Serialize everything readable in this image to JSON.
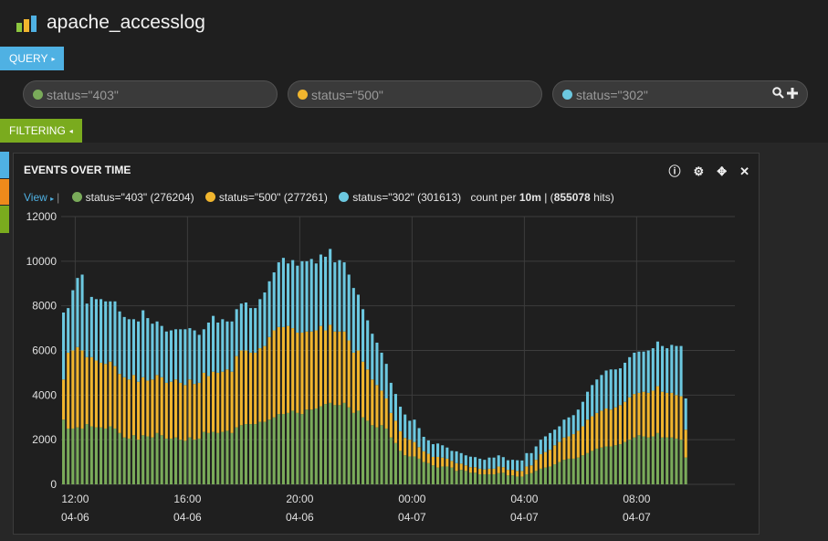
{
  "app": {
    "title": "apache_accesslog"
  },
  "query_tab": {
    "label": "QUERY",
    "caret": "▸"
  },
  "filter_tab": {
    "label": "FILTERING",
    "caret": "◂"
  },
  "queries": [
    {
      "text": "status=\"403\"",
      "color": "#7aab5a"
    },
    {
      "text": "status=\"500\"",
      "color": "#f0b52e"
    },
    {
      "text": "status=\"302\"",
      "color": "#6cc8e0"
    }
  ],
  "query_actions": {
    "search_icon": "search-icon",
    "add_icon": "plus-icon"
  },
  "side_strip_colors": [
    "#4fb1e3",
    "#ef8a1b",
    "#7aab1e"
  ],
  "panel": {
    "title": "EVENTS OVER TIME",
    "icons": [
      "info-icon",
      "gear-icon",
      "move-icon",
      "close-icon"
    ]
  },
  "legend": {
    "view_label": "View",
    "items": [
      {
        "label": "status=\"403\" (276204)",
        "color": "#7aab5a"
      },
      {
        "label": "status=\"500\" (277261)",
        "color": "#f0b52e"
      },
      {
        "label": "status=\"302\" (301613)",
        "color": "#6cc8e0"
      }
    ],
    "count_prefix": "count per",
    "interval": "10m",
    "hits_prefix": "| (",
    "hits": "855078",
    "hits_suffix": "hits)"
  },
  "chart_data": {
    "type": "bar",
    "stacked": true,
    "grid": true,
    "ylim": [
      0,
      12000
    ],
    "yticks": [
      0,
      2000,
      4000,
      6000,
      8000,
      10000,
      12000
    ],
    "xticks": [
      {
        "time": "12:00",
        "date": "04-06",
        "offset_h": 0.5
      },
      {
        "time": "16:00",
        "date": "04-06",
        "offset_h": 4.5
      },
      {
        "time": "20:00",
        "date": "04-06",
        "offset_h": 8.5
      },
      {
        "time": "00:00",
        "date": "04-07",
        "offset_h": 12.5
      },
      {
        "time": "04:00",
        "date": "04-07",
        "offset_h": 16.5
      },
      {
        "time": "08:00",
        "date": "04-07",
        "offset_h": 20.5
      }
    ],
    "x_range_h": [
      0,
      24
    ],
    "interval_min": 10,
    "series": [
      {
        "name": "status=\"403\"",
        "color": "#7aab5a",
        "values": [
          2900,
          2500,
          2500,
          2550,
          2500,
          2700,
          2600,
          2550,
          2550,
          2500,
          2600,
          2500,
          2300,
          2100,
          2050,
          2200,
          2000,
          2200,
          2150,
          2100,
          2300,
          2200,
          2050,
          2050,
          2100,
          2000,
          1950,
          2100,
          2000,
          2050,
          2350,
          2300,
          2350,
          2300,
          2350,
          2400,
          2300,
          2550,
          2650,
          2700,
          2700,
          2700,
          2800,
          2800,
          2900,
          3000,
          3150,
          3150,
          3200,
          3300,
          3200,
          3150,
          3350,
          3350,
          3400,
          3500,
          3600,
          3650,
          3550,
          3550,
          3650,
          3450,
          3200,
          3300,
          3000,
          2850,
          2650,
          2550,
          2650,
          2500,
          2100,
          1850,
          1500,
          1300,
          1250,
          1250,
          1150,
          1000,
          950,
          850,
          750,
          800,
          800,
          750,
          600,
          650,
          600,
          520,
          520,
          450,
          450,
          450,
          450,
          500,
          520,
          400,
          400,
          350,
          350,
          450,
          500,
          600,
          700,
          750,
          800,
          900,
          1000,
          1100,
          1150,
          1150,
          1200,
          1300,
          1400,
          1500,
          1600,
          1650,
          1700,
          1700,
          1750,
          1800,
          1900,
          2000,
          2100,
          2200,
          2150,
          2100,
          2150,
          2300,
          2100,
          2100,
          2100,
          2050,
          2000,
          1200
        ]
      },
      {
        "name": "status=\"500\"",
        "color": "#f0b52e",
        "values": [
          1800,
          3400,
          3500,
          3600,
          3500,
          3000,
          3100,
          3000,
          2900,
          2900,
          2900,
          2800,
          2650,
          2700,
          2650,
          2700,
          2600,
          2600,
          2500,
          2600,
          2600,
          2600,
          2500,
          2550,
          2600,
          2550,
          2500,
          2600,
          2500,
          2500,
          2650,
          2550,
          2700,
          2700,
          2700,
          2750,
          2750,
          3200,
          3350,
          3300,
          3200,
          3200,
          3300,
          3400,
          3700,
          3900,
          3900,
          3900,
          3900,
          3700,
          3600,
          3650,
          3500,
          3500,
          3500,
          3600,
          3300,
          3500,
          3300,
          3300,
          3200,
          3000,
          2700,
          2700,
          2500,
          2300,
          2050,
          1900,
          1550,
          1350,
          1100,
          1000,
          880,
          780,
          750,
          650,
          520,
          480,
          420,
          380,
          480,
          400,
          350,
          300,
          350,
          280,
          250,
          250,
          250,
          250,
          220,
          250,
          250,
          300,
          250,
          250,
          250,
          250,
          250,
          350,
          350,
          500,
          650,
          700,
          750,
          850,
          900,
          1000,
          1000,
          1100,
          1200,
          1300,
          1500,
          1550,
          1600,
          1650,
          1700,
          1650,
          1700,
          1750,
          1800,
          1900,
          1950,
          1900,
          2000,
          2000,
          2050,
          2100,
          2050,
          2000,
          2000,
          1950,
          1950,
          1250
        ]
      },
      {
        "name": "status=\"302\"",
        "color": "#6cc8e0",
        "values": [
          3000,
          2000,
          2700,
          3100,
          3400,
          2400,
          2700,
          2750,
          2850,
          2800,
          2700,
          2900,
          2800,
          2700,
          2700,
          2500,
          2700,
          3000,
          2800,
          2500,
          2400,
          2300,
          2300,
          2300,
          2250,
          2400,
          2500,
          2300,
          2400,
          2150,
          1950,
          2400,
          2500,
          2250,
          2350,
          2150,
          2250,
          2100,
          2100,
          2150,
          2000,
          2000,
          2200,
          2400,
          2500,
          2600,
          2900,
          3100,
          2800,
          3050,
          3000,
          3200,
          3150,
          3250,
          3000,
          3200,
          3300,
          3400,
          3100,
          3200,
          3100,
          2950,
          2900,
          2500,
          2350,
          2200,
          2050,
          1900,
          1700,
          1550,
          1350,
          1200,
          1100,
          1050,
          850,
          1000,
          850,
          650,
          600,
          570,
          600,
          550,
          500,
          450,
          530,
          470,
          450,
          470,
          450,
          450,
          430,
          500,
          500,
          500,
          450,
          430,
          450,
          480,
          470,
          600,
          550,
          600,
          650,
          700,
          750,
          700,
          700,
          800,
          850,
          850,
          950,
          1100,
          1250,
          1400,
          1500,
          1600,
          1700,
          1800,
          1700,
          1650,
          1750,
          1800,
          1850,
          1850,
          1800,
          1900,
          1900,
          2000,
          2050,
          2000,
          2150,
          2200,
          2250,
          1400
        ]
      }
    ]
  }
}
